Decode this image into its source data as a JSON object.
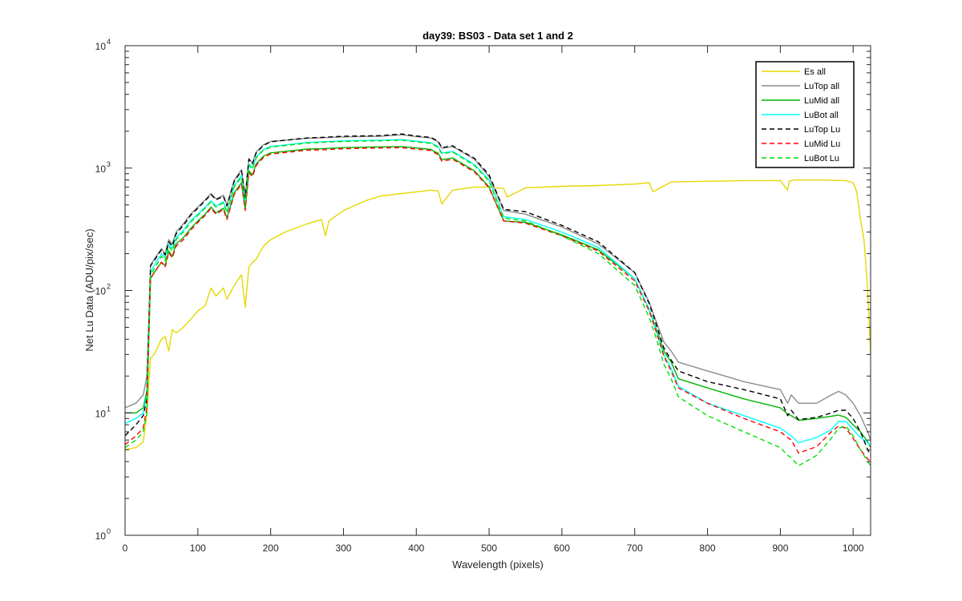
{
  "chart_data": {
    "type": "line",
    "title": "day39: BS03 - Data set 1 and 2",
    "xlabel": "Wavelength (pixels)",
    "ylabel": "Net Lu Data (ADU/pix/sec)",
    "xlim": [
      0,
      1024
    ],
    "ylim": [
      1,
      10000
    ],
    "yscale": "log",
    "grid": false,
    "legend_position": "top-right",
    "x_ticks": [
      {
        "value": 0,
        "label": "0"
      },
      {
        "value": 100,
        "label": "100"
      },
      {
        "value": 200,
        "label": "200"
      },
      {
        "value": 300,
        "label": "300"
      },
      {
        "value": 400,
        "label": "400"
      },
      {
        "value": 500,
        "label": "500"
      },
      {
        "value": 600,
        "label": "600"
      },
      {
        "value": 700,
        "label": "700"
      },
      {
        "value": 800,
        "label": "800"
      },
      {
        "value": 900,
        "label": "900"
      },
      {
        "value": 1000,
        "label": "1000"
      }
    ],
    "y_ticks": [
      {
        "value": 1,
        "base": "10",
        "exp": "0"
      },
      {
        "value": 10,
        "base": "10",
        "exp": "1"
      },
      {
        "value": 100,
        "base": "10",
        "exp": "2"
      },
      {
        "value": 1000,
        "base": "10",
        "exp": "3"
      },
      {
        "value": 10000,
        "base": "10",
        "exp": "4"
      }
    ],
    "series": [
      {
        "name": "Es  all",
        "color": "#e6d800",
        "dash": "solid",
        "x": [
          0,
          15,
          25,
          30,
          35,
          40,
          50,
          55,
          60,
          65,
          70,
          80,
          90,
          100,
          110,
          118,
          125,
          135,
          140,
          150,
          160,
          165,
          170,
          175,
          180,
          190,
          200,
          220,
          250,
          270,
          275,
          280,
          300,
          330,
          350,
          380,
          400,
          420,
          430,
          435,
          450,
          480,
          500,
          520,
          525,
          550,
          600,
          650,
          700,
          720,
          725,
          750,
          800,
          850,
          900,
          910,
          912,
          920,
          950,
          990,
          1000,
          1005,
          1010,
          1015,
          1020,
          1024
        ],
        "y": [
          5,
          5.2,
          5.8,
          10,
          28,
          30,
          40,
          42,
          32,
          48,
          45,
          50,
          58,
          68,
          75,
          105,
          90,
          105,
          85,
          110,
          135,
          73,
          155,
          170,
          180,
          230,
          260,
          300,
          350,
          380,
          280,
          370,
          450,
          540,
          590,
          620,
          640,
          660,
          650,
          510,
          660,
          700,
          700,
          680,
          580,
          690,
          710,
          720,
          740,
          760,
          640,
          770,
          780,
          790,
          790,
          660,
          780,
          800,
          800,
          790,
          760,
          640,
          380,
          260,
          100,
          30
        ]
      },
      {
        "name": "LuTop  all",
        "color": "#8c8c8c",
        "dash": "solid",
        "x": [
          0,
          15,
          25,
          30,
          35,
          40,
          50,
          55,
          60,
          65,
          70,
          80,
          90,
          100,
          110,
          118,
          125,
          135,
          140,
          150,
          160,
          165,
          170,
          175,
          180,
          190,
          200,
          250,
          270,
          300,
          350,
          380,
          400,
          420,
          430,
          435,
          450,
          480,
          500,
          520,
          550,
          600,
          650,
          700,
          720,
          730,
          740,
          750,
          760,
          800,
          850,
          900,
          910,
          915,
          925,
          950,
          970,
          980,
          990,
          1000,
          1010,
          1020,
          1024
        ],
        "y": [
          11,
          12,
          14,
          20,
          160,
          180,
          220,
          200,
          260,
          240,
          300,
          350,
          420,
          480,
          550,
          620,
          560,
          600,
          500,
          800,
          970,
          580,
          1200,
          1100,
          1350,
          1550,
          1650,
          1750,
          1770,
          1800,
          1820,
          1870,
          1810,
          1760,
          1640,
          1450,
          1500,
          1180,
          850,
          450,
          420,
          330,
          240,
          140,
          80,
          55,
          38,
          32,
          26,
          22,
          18,
          15.5,
          12,
          14,
          12,
          12,
          14,
          15,
          14,
          12,
          9.5,
          7,
          6
        ]
      },
      {
        "name": "LuMid  all",
        "color": "#00b400",
        "dash": "solid",
        "x": [
          0,
          15,
          25,
          30,
          35,
          40,
          50,
          55,
          60,
          65,
          70,
          80,
          90,
          100,
          110,
          118,
          125,
          135,
          140,
          150,
          160,
          165,
          170,
          175,
          180,
          190,
          200,
          250,
          270,
          300,
          350,
          380,
          400,
          420,
          430,
          435,
          450,
          480,
          500,
          520,
          550,
          600,
          650,
          700,
          720,
          730,
          740,
          750,
          760,
          800,
          850,
          900,
          910,
          915,
          925,
          950,
          970,
          980,
          990,
          1000,
          1010,
          1020,
          1024
        ],
        "y": [
          10,
          10,
          11,
          15,
          125,
          140,
          170,
          160,
          210,
          190,
          240,
          270,
          320,
          370,
          420,
          480,
          430,
          470,
          390,
          630,
          760,
          460,
          950,
          880,
          1080,
          1250,
          1330,
          1430,
          1440,
          1470,
          1490,
          1500,
          1460,
          1420,
          1320,
          1170,
          1210,
          950,
          700,
          370,
          360,
          285,
          215,
          125,
          70,
          48,
          32,
          26,
          19,
          16,
          13,
          11,
          9.8,
          9.5,
          8.7,
          9,
          9.4,
          9.6,
          9.2,
          8,
          7,
          5.8,
          5.2
        ]
      },
      {
        "name": "LuBot  all",
        "color": "#00ffff",
        "dash": "solid",
        "x": [
          0,
          15,
          25,
          30,
          35,
          40,
          50,
          55,
          60,
          65,
          70,
          80,
          90,
          100,
          110,
          118,
          125,
          135,
          140,
          150,
          160,
          165,
          170,
          175,
          180,
          190,
          200,
          250,
          270,
          300,
          350,
          380,
          400,
          420,
          430,
          435,
          450,
          480,
          500,
          520,
          550,
          600,
          650,
          700,
          720,
          730,
          740,
          750,
          760,
          800,
          850,
          900,
          910,
          915,
          925,
          950,
          970,
          980,
          990,
          1000,
          1010,
          1020,
          1024
        ],
        "y": [
          8.2,
          9,
          10,
          14,
          140,
          160,
          200,
          185,
          240,
          220,
          270,
          310,
          370,
          420,
          480,
          540,
          490,
          530,
          440,
          720,
          870,
          520,
          1080,
          1000,
          1230,
          1420,
          1500,
          1620,
          1640,
          1670,
          1690,
          1710,
          1660,
          1610,
          1500,
          1330,
          1370,
          1070,
          800,
          400,
          380,
          300,
          225,
          125,
          70,
          46,
          30,
          23,
          16.5,
          12,
          9.5,
          7.5,
          6.8,
          6.5,
          5.7,
          6.3,
          7.3,
          8.5,
          8.5,
          7.3,
          6.3,
          5.7,
          5.4
        ]
      },
      {
        "name": "LuTop  Lu",
        "color": "#000000",
        "dash": "dashed",
        "x": [
          0,
          15,
          25,
          30,
          35,
          40,
          50,
          55,
          60,
          65,
          70,
          80,
          90,
          100,
          110,
          118,
          125,
          135,
          140,
          150,
          160,
          165,
          170,
          175,
          180,
          190,
          200,
          250,
          270,
          300,
          350,
          380,
          400,
          420,
          430,
          435,
          450,
          480,
          500,
          520,
          550,
          600,
          650,
          700,
          720,
          730,
          740,
          750,
          760,
          800,
          850,
          900,
          910,
          915,
          925,
          950,
          970,
          980,
          990,
          1000,
          1010,
          1020,
          1024
        ],
        "y": [
          6.5,
          8,
          9.5,
          13,
          160,
          175,
          215,
          195,
          250,
          230,
          290,
          340,
          410,
          470,
          540,
          610,
          550,
          590,
          490,
          780,
          950,
          570,
          1180,
          1080,
          1330,
          1530,
          1640,
          1760,
          1780,
          1820,
          1840,
          1900,
          1830,
          1780,
          1660,
          1470,
          1520,
          1200,
          880,
          460,
          440,
          340,
          250,
          140,
          78,
          52,
          34,
          27,
          22,
          18,
          15.5,
          13,
          9.5,
          10.5,
          8.8,
          9.2,
          10,
          10.5,
          10.5,
          9,
          7,
          5,
          4.5
        ]
      },
      {
        "name": "LuMid  Lu",
        "color": "#ff0000",
        "dash": "dashed",
        "x": [
          0,
          15,
          25,
          30,
          35,
          40,
          50,
          55,
          60,
          65,
          70,
          80,
          90,
          100,
          110,
          118,
          125,
          135,
          140,
          150,
          160,
          165,
          170,
          175,
          180,
          190,
          200,
          250,
          270,
          300,
          350,
          380,
          400,
          420,
          430,
          435,
          450,
          480,
          500,
          520,
          550,
          600,
          650,
          700,
          720,
          730,
          740,
          750,
          760,
          800,
          850,
          900,
          910,
          915,
          925,
          950,
          970,
          980,
          990,
          1000,
          1010,
          1020,
          1024
        ],
        "y": [
          5.5,
          6.5,
          7.5,
          11,
          125,
          140,
          170,
          155,
          205,
          185,
          230,
          260,
          310,
          360,
          410,
          470,
          420,
          460,
          380,
          610,
          740,
          450,
          920,
          850,
          1050,
          1220,
          1300,
          1400,
          1410,
          1440,
          1460,
          1470,
          1430,
          1390,
          1290,
          1140,
          1180,
          930,
          690,
          370,
          355,
          280,
          210,
          120,
          68,
          45,
          29,
          22,
          16,
          12,
          9,
          7,
          6.3,
          6,
          4.7,
          5.3,
          7,
          7.8,
          7.5,
          6.2,
          5,
          4.2,
          4
        ]
      },
      {
        "name": "LuBot  Lu",
        "color": "#00e000",
        "dash": "dashed",
        "x": [
          0,
          15,
          25,
          30,
          35,
          40,
          50,
          55,
          60,
          65,
          70,
          80,
          90,
          100,
          110,
          118,
          125,
          135,
          140,
          150,
          160,
          165,
          170,
          175,
          180,
          190,
          200,
          250,
          270,
          300,
          350,
          380,
          400,
          420,
          430,
          435,
          450,
          480,
          500,
          520,
          550,
          600,
          650,
          700,
          720,
          730,
          740,
          750,
          760,
          800,
          850,
          900,
          910,
          915,
          925,
          950,
          970,
          980,
          990,
          1000,
          1010,
          1020,
          1024
        ],
        "y": [
          5.2,
          6,
          7,
          10,
          130,
          150,
          190,
          175,
          230,
          210,
          260,
          300,
          360,
          410,
          470,
          530,
          480,
          520,
          430,
          700,
          850,
          510,
          1060,
          980,
          1210,
          1400,
          1480,
          1600,
          1620,
          1650,
          1670,
          1690,
          1640,
          1590,
          1480,
          1310,
          1350,
          1050,
          780,
          390,
          370,
          280,
          200,
          110,
          60,
          40,
          25,
          19,
          13.5,
          9.5,
          7,
          5.2,
          4.5,
          4.3,
          3.7,
          4.5,
          6.2,
          7.5,
          7.8,
          6.5,
          5,
          4,
          3.7
        ]
      }
    ]
  }
}
